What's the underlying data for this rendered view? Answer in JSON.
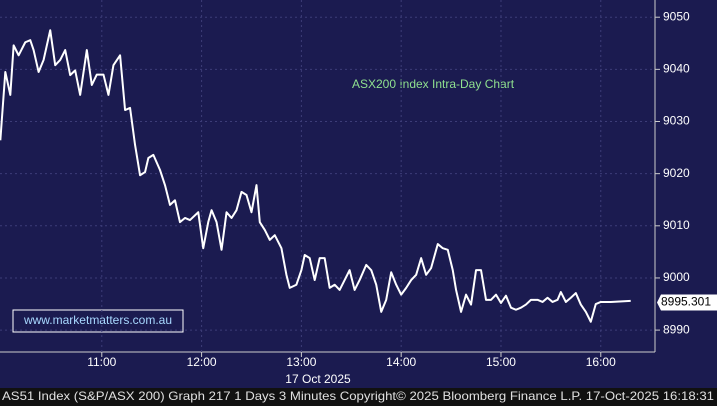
{
  "chart_data": {
    "type": "line",
    "title": "ASX200 Index Intra-Day Chart",
    "watermark": "www.marketmatters.com.au",
    "date_label": "17 Oct 2025",
    "last_value": 8995.301,
    "footer": "AS51 Index (S&P/ASX 200) Graph 217 1 Days 3 Minutes Copyright© 2025 Bloomberg Finance L.P. 17-Oct-2025 16:18:31",
    "color": "#ffffff",
    "grid": true,
    "x": [
      599,
      602,
      605,
      607,
      610,
      614,
      617,
      619,
      622,
      625,
      629,
      632,
      635,
      638,
      641,
      644,
      647,
      651,
      654,
      657,
      661,
      664,
      667,
      671,
      674,
      677,
      680,
      683,
      686,
      688,
      691,
      695,
      698,
      701,
      704,
      707,
      710,
      713,
      718,
      721,
      724,
      726,
      729,
      732,
      735,
      738,
      741,
      744,
      747,
      750,
      753,
      755,
      758,
      761,
      764,
      768,
      771,
      773,
      777,
      780,
      782,
      785,
      788,
      791,
      794,
      797,
      800,
      803,
      806,
      809,
      812,
      815,
      819,
      822,
      825,
      828,
      831,
      834,
      837,
      840,
      843,
      846,
      849,
      852,
      855,
      858,
      862,
      865,
      868,
      871,
      873,
      876,
      879,
      882,
      885,
      888,
      891,
      894,
      897,
      900,
      903,
      906,
      909,
      912,
      915,
      918,
      922,
      925,
      928,
      931,
      934,
      936,
      939,
      942,
      945,
      948,
      951,
      954,
      957,
      960,
      966,
      978
    ],
    "values": [
      9026.4,
      9039.5,
      9035.1,
      9044.6,
      9042.7,
      9045.2,
      9045.6,
      9043.7,
      9039.5,
      9041.8,
      9047.5,
      9040.8,
      9041.8,
      9043.7,
      9038.9,
      9039.8,
      9035.1,
      9043.7,
      9037.0,
      9039.0,
      9039.0,
      9035.1,
      9040.8,
      9042.7,
      9032.2,
      9032.6,
      9025.5,
      9019.7,
      9020.3,
      9023.0,
      9023.6,
      9020.7,
      9017.8,
      9014.0,
      9014.9,
      9010.7,
      9011.5,
      9011.1,
      9012.6,
      9005.7,
      9010.7,
      9013.0,
      9010.7,
      9005.4,
      9012.6,
      9011.5,
      9013.0,
      9016.5,
      9015.9,
      9012.6,
      9017.8,
      9010.7,
      9009.2,
      9007.3,
      9008.2,
      9005.7,
      9000.6,
      8998.1,
      8998.7,
      9001.5,
      9004.4,
      9003.8,
      8999.6,
      9003.8,
      9003.8,
      8998.1,
      8998.7,
      8997.7,
      8999.6,
      9001.5,
      8997.7,
      8999.6,
      9002.5,
      9001.5,
      8998.7,
      8993.5,
      8995.8,
      9001.1,
      8998.7,
      8996.8,
      8998.1,
      8999.6,
      9000.6,
      9003.8,
      9000.6,
      9001.9,
      9006.5,
      9005.7,
      9005.4,
      9001.5,
      8997.7,
      8993.5,
      8996.8,
      8994.9,
      9001.5,
      9001.5,
      8995.8,
      8995.8,
      8996.8,
      8995.2,
      8996.6,
      8994.3,
      8993.9,
      8994.3,
      8994.9,
      8995.8,
      8995.8,
      8995.4,
      8996.2,
      8995.4,
      8995.8,
      8997.3,
      8995.4,
      8996.2,
      8997.1,
      8994.9,
      8993.5,
      8991.6,
      8995.0,
      8995.4,
      8995.4,
      8995.6
    ],
    "xlim": [
      598.8,
      992.6
    ],
    "ylim": [
      8985.8,
      9053.3
    ],
    "xticks": [
      {
        "value": 660,
        "label": "11:00"
      },
      {
        "value": 720,
        "label": "12:00"
      },
      {
        "value": 780,
        "label": "13:00"
      },
      {
        "value": 840,
        "label": "14:00"
      },
      {
        "value": 900,
        "label": "15:00"
      },
      {
        "value": 960,
        "label": "16:00"
      }
    ],
    "yticks": [
      8990,
      9000,
      9010,
      9020,
      9030,
      9040,
      9050
    ]
  }
}
